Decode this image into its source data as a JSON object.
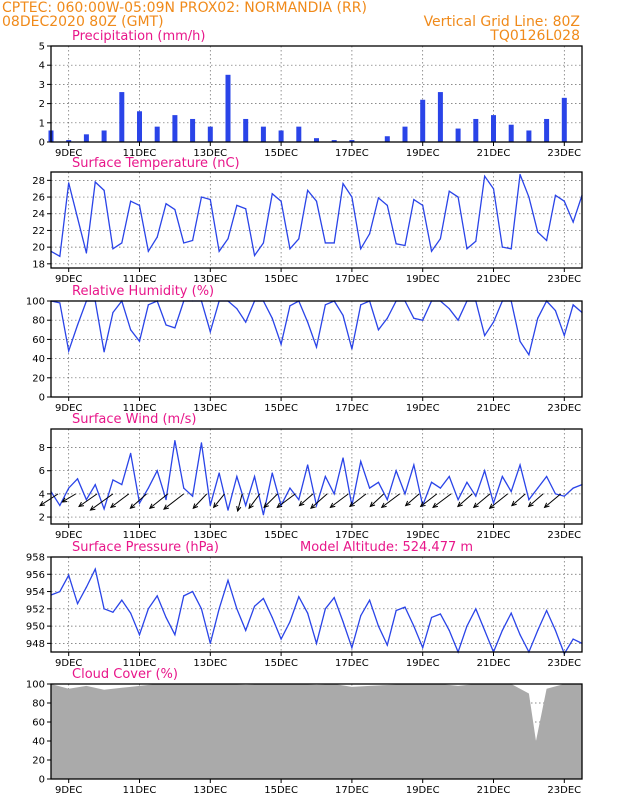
{
  "header": {
    "line1_left": "CPTEC:   060:00W-05:09N   PROX02: NORMANDIA (RR)",
    "line2_left": "08DEC2020 80Z (GMT)",
    "line2_right": "Vertical Grid Line: 80Z",
    "line3_right": "TQ0126L028"
  },
  "x_labels": [
    "9DEC",
    "11DEC",
    "13DEC",
    "15DEC",
    "17DEC",
    "19DEC",
    "21DEC",
    "23DEC"
  ],
  "colors": {
    "series": "#2a44e8",
    "cloud": "#aaaaaa",
    "title": "#e8168a",
    "header": "#f08a1a"
  },
  "chart_data": [
    {
      "id": "precip",
      "type": "bar",
      "title": "Precipitation (mm/h)",
      "ylim": [
        0,
        5
      ],
      "yticks": [
        0,
        1,
        2,
        3,
        4,
        5
      ],
      "x_unit": "days since 08DEC2020 08Z",
      "x": [
        0.0,
        0.5,
        1.0,
        1.5,
        2.0,
        2.5,
        3.0,
        3.5,
        4.0,
        4.5,
        5.0,
        5.5,
        6.0,
        6.5,
        7.0,
        7.5,
        8.0,
        8.5,
        9.0,
        9.5,
        10.0,
        10.5,
        11.0,
        11.5,
        12.0,
        12.5,
        13.0,
        13.5,
        14.0,
        14.5
      ],
      "values": [
        0.6,
        0.1,
        0.4,
        0.6,
        2.6,
        1.6,
        0.8,
        1.4,
        1.2,
        0.8,
        3.5,
        1.2,
        0.8,
        0.6,
        0.8,
        0.2,
        0.1,
        0.1,
        0.0,
        0.3,
        0.8,
        2.2,
        2.6,
        0.7,
        1.2,
        1.4,
        0.9,
        0.6,
        1.2,
        2.3
      ]
    },
    {
      "id": "temp",
      "type": "line",
      "title": "Surface Temperature (nC)",
      "ylim": [
        17.5,
        29
      ],
      "yticks": [
        18,
        20,
        22,
        24,
        26,
        28
      ],
      "x": [
        0.0,
        0.25,
        0.5,
        0.75,
        1.0,
        1.25,
        1.5,
        1.75,
        2.0,
        2.25,
        2.5,
        2.75,
        3.0,
        3.25,
        3.5,
        3.75,
        4.0,
        4.25,
        4.5,
        4.75,
        5.0,
        5.25,
        5.5,
        5.75,
        6.0,
        6.25,
        6.5,
        6.75,
        7.0,
        7.25,
        7.5,
        7.75,
        8.0,
        8.25,
        8.5,
        8.75,
        9.0,
        9.25,
        9.5,
        9.75,
        10.0,
        10.25,
        10.5,
        10.75,
        11.0,
        11.25,
        11.5,
        11.75,
        12.0,
        12.25,
        12.5,
        12.75,
        13.0,
        13.25,
        13.5,
        13.75,
        14.0,
        14.25,
        14.5,
        14.75,
        15.0
      ],
      "values": [
        19.5,
        18.9,
        27.7,
        23.5,
        19.3,
        27.8,
        26.8,
        19.8,
        20.5,
        25.5,
        25.0,
        19.5,
        21.2,
        25.2,
        24.5,
        20.5,
        20.8,
        26.0,
        25.7,
        19.5,
        21.0,
        25.0,
        24.6,
        19.0,
        20.5,
        26.4,
        25.5,
        19.8,
        21.0,
        26.8,
        25.5,
        20.5,
        20.5,
        27.6,
        26.0,
        19.8,
        21.6,
        25.9,
        25.0,
        20.4,
        20.2,
        25.7,
        25.0,
        19.5,
        21.0,
        26.7,
        26.0,
        19.8,
        20.7,
        28.5,
        27.0,
        20.0,
        19.8,
        28.7,
        26.0,
        21.8,
        20.8,
        26.2,
        25.5,
        23.0,
        26.2
      ]
    },
    {
      "id": "rh",
      "type": "line",
      "title": "Relative Humidity (%)",
      "ylim": [
        0,
        100
      ],
      "yticks": [
        0,
        20,
        40,
        60,
        80,
        100
      ],
      "x": [
        0.0,
        0.25,
        0.5,
        0.75,
        1.0,
        1.25,
        1.5,
        1.75,
        2.0,
        2.25,
        2.5,
        2.75,
        3.0,
        3.25,
        3.5,
        3.75,
        4.0,
        4.25,
        4.5,
        4.75,
        5.0,
        5.25,
        5.5,
        5.75,
        6.0,
        6.25,
        6.5,
        6.75,
        7.0,
        7.25,
        7.5,
        7.75,
        8.0,
        8.25,
        8.5,
        8.75,
        9.0,
        9.25,
        9.5,
        9.75,
        10.0,
        10.25,
        10.5,
        10.75,
        11.0,
        11.25,
        11.5,
        11.75,
        12.0,
        12.25,
        12.5,
        12.75,
        13.0,
        13.25,
        13.5,
        13.75,
        14.0,
        14.25,
        14.5,
        14.75,
        15.0
      ],
      "values": [
        100,
        98,
        48,
        75,
        100,
        100,
        47,
        88,
        100,
        70,
        58,
        96,
        100,
        75,
        72,
        100,
        100,
        100,
        68,
        100,
        100,
        92,
        78,
        100,
        100,
        82,
        55,
        95,
        100,
        78,
        52,
        96,
        100,
        85,
        50,
        96,
        100,
        70,
        82,
        100,
        100,
        82,
        80,
        100,
        100,
        92,
        80,
        100,
        100,
        64,
        78,
        100,
        100,
        58,
        44,
        82,
        100,
        90,
        64,
        96,
        88
      ]
    },
    {
      "id": "wind",
      "type": "line",
      "title": "Surface Wind (m/s)",
      "ylim": [
        1.4,
        9.6
      ],
      "yticks": [
        2,
        4,
        6,
        8
      ],
      "x": [
        0.0,
        0.25,
        0.5,
        0.75,
        1.0,
        1.25,
        1.5,
        1.75,
        2.0,
        2.25,
        2.5,
        2.75,
        3.0,
        3.25,
        3.5,
        3.75,
        4.0,
        4.25,
        4.5,
        4.75,
        5.0,
        5.25,
        5.5,
        5.75,
        6.0,
        6.25,
        6.5,
        6.75,
        7.0,
        7.25,
        7.5,
        7.75,
        8.0,
        8.25,
        8.5,
        8.75,
        9.0,
        9.25,
        9.5,
        9.75,
        10.0,
        10.25,
        10.5,
        10.75,
        11.0,
        11.25,
        11.5,
        11.75,
        12.0,
        12.25,
        12.5,
        12.75,
        13.0,
        13.25,
        13.5,
        13.75,
        14.0,
        14.25,
        14.5,
        14.75,
        15.0
      ],
      "values": [
        4.2,
        3.0,
        4.5,
        5.3,
        3.5,
        4.8,
        2.7,
        5.2,
        4.8,
        7.5,
        3.2,
        4.5,
        6.0,
        3.5,
        8.6,
        4.5,
        3.8,
        8.4,
        3.0,
        5.8,
        2.6,
        5.5,
        3.0,
        5.5,
        2.2,
        5.8,
        3.0,
        4.5,
        3.5,
        6.5,
        3.0,
        5.5,
        4.0,
        7.1,
        3.0,
        6.8,
        4.5,
        5.0,
        3.5,
        6.0,
        4.0,
        6.5,
        3.0,
        5.0,
        4.5,
        5.5,
        3.5,
        5.0,
        3.8,
        6.0,
        3.2,
        5.5,
        4.2,
        6.5,
        3.5,
        4.5,
        5.5,
        4.0,
        3.8,
        4.5,
        4.8
      ],
      "arrows": {
        "x": [
          0.2,
          0.7,
          1.3,
          1.75,
          2.2,
          2.7,
          3.3,
          3.75,
          4.4,
          4.9,
          5.4,
          5.9,
          6.4,
          6.9,
          7.4,
          7.8,
          8.4,
          8.9,
          9.4,
          9.85,
          10.4,
          10.9,
          11.3,
          11.9,
          12.4,
          12.9,
          13.4,
          13.9,
          14.4
        ],
        "u": [
          -2.0,
          -1.5,
          -2.0,
          -2.5,
          -2.0,
          -1.8,
          -2.0,
          -2.2,
          -1.5,
          -1.2,
          -0.5,
          -1.2,
          -1.5,
          -2.0,
          -1.5,
          -1.8,
          -2.0,
          -1.8,
          -1.5,
          -2.0,
          -1.5,
          -1.8,
          -2.0,
          -1.6,
          -1.8,
          -2.0,
          -1.5,
          -1.6,
          -1.8
        ],
        "v": [
          -1.3,
          -0.9,
          -1.4,
          -1.8,
          -1.5,
          -1.6,
          -1.6,
          -1.7,
          -1.6,
          -1.5,
          -1.9,
          -1.6,
          -1.5,
          -1.5,
          -1.3,
          -1.6,
          -1.5,
          -1.4,
          -1.4,
          -1.5,
          -1.3,
          -1.4,
          -1.5,
          -1.4,
          -1.5,
          -1.6,
          -1.3,
          -1.4,
          -1.5
        ]
      }
    },
    {
      "id": "pres",
      "type": "line",
      "title": "Surface Pressure (hPa)",
      "annotation": "Model Altitude: 524.477 m",
      "ylim": [
        947.0,
        958.0
      ],
      "yticks": [
        948,
        950,
        952,
        954,
        956,
        958
      ],
      "x": [
        0.0,
        0.25,
        0.5,
        0.75,
        1.0,
        1.25,
        1.5,
        1.75,
        2.0,
        2.25,
        2.5,
        2.75,
        3.0,
        3.25,
        3.5,
        3.75,
        4.0,
        4.25,
        4.5,
        4.75,
        5.0,
        5.25,
        5.5,
        5.75,
        6.0,
        6.25,
        6.5,
        6.75,
        7.0,
        7.25,
        7.5,
        7.75,
        8.0,
        8.25,
        8.5,
        8.75,
        9.0,
        9.25,
        9.5,
        9.75,
        10.0,
        10.25,
        10.5,
        10.75,
        11.0,
        11.25,
        11.5,
        11.75,
        12.0,
        12.25,
        12.5,
        12.75,
        13.0,
        13.25,
        13.5,
        13.75,
        14.0,
        14.25,
        14.5,
        14.75,
        15.0
      ],
      "values": [
        953.6,
        954.0,
        955.9,
        952.6,
        954.5,
        956.6,
        952.0,
        951.6,
        953.0,
        951.5,
        949.0,
        952.0,
        953.5,
        951.0,
        949.0,
        953.5,
        954.0,
        952.0,
        948.0,
        952.0,
        955.3,
        952.0,
        949.5,
        952.3,
        953.2,
        951.0,
        948.5,
        950.5,
        953.4,
        951.5,
        948.0,
        952.0,
        953.3,
        950.5,
        947.5,
        951.2,
        953.0,
        950.0,
        947.8,
        951.8,
        952.2,
        950.0,
        947.5,
        951.0,
        951.4,
        949.5,
        947.0,
        950.0,
        952.0,
        949.5,
        947.0,
        949.5,
        951.5,
        949.0,
        947.0,
        949.5,
        951.8,
        949.5,
        946.8,
        948.5,
        948.0
      ]
    },
    {
      "id": "cloud",
      "type": "area",
      "title": "Cloud Cover (%)",
      "ylim": [
        0,
        100
      ],
      "yticks": [
        0,
        20,
        40,
        60,
        80,
        100
      ],
      "x": [
        0.0,
        0.5,
        1.0,
        1.5,
        2.0,
        2.5,
        3.0,
        3.5,
        4.0,
        4.5,
        5.0,
        5.5,
        6.0,
        6.5,
        7.0,
        7.5,
        8.0,
        8.5,
        9.0,
        9.5,
        10.0,
        10.5,
        11.0,
        11.5,
        12.0,
        12.5,
        13.0,
        13.5,
        13.7,
        14.0,
        14.5,
        15.0
      ],
      "values": [
        100,
        95,
        98,
        94,
        96,
        98,
        100,
        100,
        100,
        100,
        100,
        99,
        100,
        100,
        100,
        99,
        100,
        97,
        98,
        99,
        100,
        100,
        100,
        98,
        100,
        100,
        100,
        90,
        40,
        95,
        100,
        100
      ]
    }
  ]
}
